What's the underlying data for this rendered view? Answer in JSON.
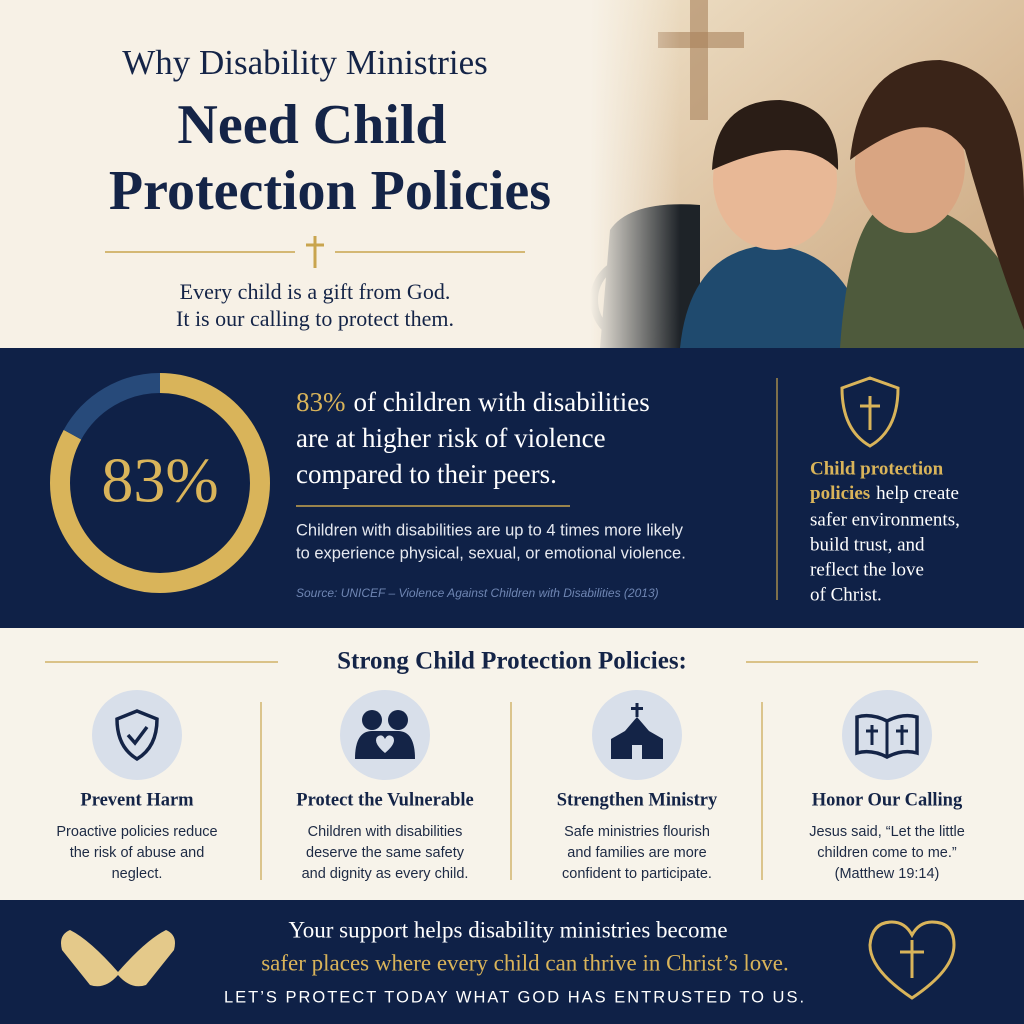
{
  "header": {
    "title_line1": "Why Disability Ministries",
    "title_line2": "Need Child",
    "title_line3": "Protection Policies",
    "subtitle_lines": [
      "Every child is a gift from God.",
      "It is our calling to protect them."
    ]
  },
  "chart_data": {
    "type": "donut",
    "center_label": "83%",
    "values": [
      83,
      17
    ],
    "colors": [
      "#d9b45a",
      "#274a7a"
    ]
  },
  "stat": {
    "highlight": "83%",
    "lines": [
      "of children with disabilities",
      "are at higher risk of violence",
      "compared to their peers."
    ],
    "body_lines": [
      "Children with disabilities are up to 4 times more likely",
      "to experience physical, sexual, or emotional violence."
    ],
    "source": "Source: UNICEF – Violence Against Children with Disabilities (2013)"
  },
  "side_panel": {
    "highlight_lines": [
      "Child protection",
      "policies"
    ],
    "lines": [
      "help create",
      "safer environments,",
      "build trust, and",
      "reflect the love",
      "of Christ."
    ]
  },
  "policies": {
    "heading": "Strong Child Protection Policies:",
    "items": [
      {
        "title": "Prevent Harm",
        "lines": [
          "Proactive policies reduce",
          "the risk of abuse and",
          "neglect."
        ]
      },
      {
        "title": "Protect the Vulnerable",
        "lines": [
          "Children with disabilities",
          "deserve the same safety",
          "and dignity as every child."
        ]
      },
      {
        "title": "Strengthen Ministry",
        "lines": [
          "Safe ministries flourish",
          "and families are more",
          "confident to participate."
        ]
      },
      {
        "title": "Honor Our Calling",
        "lines": [
          "Jesus said, “Let the little",
          "children come to me.”",
          "(Matthew 19:14)"
        ]
      }
    ]
  },
  "footer": {
    "line1": "Your support helps disability ministries become",
    "line2": "safer places where every child can thrive in Christ’s love.",
    "line3": "LET’S PROTECT TODAY WHAT GOD HAS ENTRUSTED TO US."
  }
}
